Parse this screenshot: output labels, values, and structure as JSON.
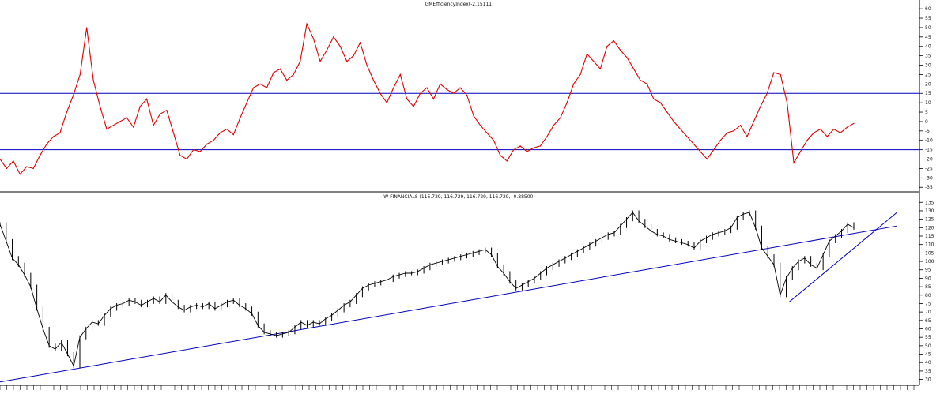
{
  "chart_data": [
    {
      "type": "line",
      "title": "GMEfficiencyIndex(-2.15111)",
      "ylim": [
        -37,
        63
      ],
      "y_ticks": [
        60,
        55,
        50,
        45,
        40,
        35,
        30,
        25,
        20,
        15,
        10,
        5,
        0,
        -5,
        -10,
        -15,
        -20,
        -25,
        -30,
        -35
      ],
      "reference_lines": [
        15,
        -15
      ],
      "colors": {
        "series": "#e00000",
        "reference": "#0000c0",
        "axis": "#000000"
      },
      "series": [
        {
          "values": [
            -20,
            -25,
            -21,
            -28,
            -24,
            -25,
            -18,
            -12,
            -8,
            -6,
            5,
            14,
            25,
            50,
            22,
            8,
            -4,
            -2,
            0,
            2,
            -3,
            8,
            12,
            -2,
            4,
            6,
            -6,
            -18,
            -20,
            -15,
            -16,
            -12,
            -10,
            -6,
            -4,
            -7,
            2,
            10,
            18,
            20,
            18,
            26,
            28,
            22,
            25,
            32,
            52,
            44,
            32,
            38,
            45,
            40,
            32,
            35,
            42,
            30,
            22,
            15,
            10,
            18,
            25,
            12,
            8,
            15,
            18,
            12,
            20,
            17,
            15,
            18,
            14,
            3,
            -2,
            -6,
            -10,
            -18,
            -21,
            -15,
            -13,
            -16,
            -14,
            -13,
            -8,
            -2,
            2,
            10,
            20,
            25,
            36,
            32,
            28,
            40,
            43,
            38,
            34,
            28,
            22,
            20,
            12,
            10,
            5,
            0,
            -4,
            -8,
            -12,
            -16,
            -20,
            -15,
            -10,
            -6,
            -5,
            -2,
            -8,
            0,
            8,
            15,
            26,
            25,
            10,
            -22,
            -16,
            -10,
            -6,
            -4,
            -8,
            -4,
            -6,
            -3,
            -1
          ]
        }
      ],
      "grid": false
    },
    {
      "type": "line",
      "title": "W FINANCIALS (116.729, 116.729, 116.729, 116.729, -0.88500)",
      "ylim": [
        27,
        137
      ],
      "y_ticks": [
        135,
        130,
        125,
        120,
        115,
        110,
        105,
        100,
        95,
        90,
        85,
        80,
        75,
        70,
        65,
        60,
        55,
        50,
        45,
        40,
        35,
        30
      ],
      "trendlines": [
        {
          "from": [
            0,
            28.5
          ],
          "to": [
            146,
            121
          ]
        },
        {
          "from": [
            128.5,
            76
          ],
          "to": [
            146,
            129
          ]
        }
      ],
      "colors": {
        "series": "#000000",
        "trendline": "#0000c0"
      },
      "series": [
        {
          "values": [
            122,
            112,
            102,
            98,
            92,
            85,
            72,
            60,
            50,
            48,
            52,
            45,
            38,
            55,
            60,
            64,
            63,
            68,
            72,
            74,
            75,
            77,
            76,
            74,
            76,
            78,
            76,
            80,
            76,
            73,
            71,
            73,
            74,
            73,
            75,
            72,
            74,
            76,
            77,
            74,
            72,
            69,
            62,
            58,
            57,
            56,
            57,
            58,
            61,
            64,
            62,
            64,
            63,
            66,
            68,
            71,
            74,
            76,
            80,
            84,
            86,
            87,
            88,
            89,
            91,
            92,
            93,
            93,
            94,
            96,
            98,
            99,
            100,
            101,
            102,
            103,
            104,
            105,
            106,
            107,
            104,
            97,
            93,
            88,
            84,
            86,
            88,
            90,
            93,
            96,
            98,
            100,
            102,
            104,
            106,
            108,
            110,
            112,
            114,
            116,
            117,
            121,
            125,
            129,
            124,
            121,
            118,
            116,
            115,
            113,
            112,
            111,
            110,
            108,
            112,
            114,
            116,
            117,
            118,
            120,
            126,
            128,
            129,
            120,
            108,
            103,
            98,
            80,
            90,
            96,
            100,
            102,
            98,
            96,
            104,
            112,
            115,
            118,
            122,
            120
          ]
        }
      ],
      "grid": false
    }
  ]
}
